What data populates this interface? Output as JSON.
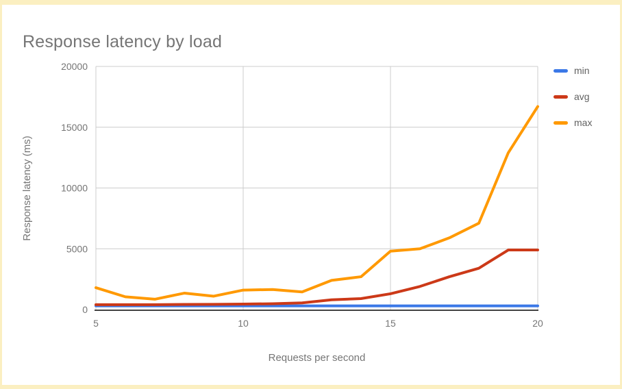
{
  "title": "Response latency by load",
  "frame": {
    "border_color": "#FBEFC1",
    "background": "#FFFFFF"
  },
  "legend": {
    "position": "right",
    "items": [
      {
        "label": "min",
        "color": "#3B78E7"
      },
      {
        "label": "avg",
        "color": "#CC3918"
      },
      {
        "label": "max",
        "color": "#FF9900"
      }
    ]
  },
  "chart_data": {
    "type": "line",
    "title": "Response latency by load",
    "xlabel": "Requests per second",
    "ylabel": "Response latency (ms)",
    "x": [
      5,
      6,
      7,
      8,
      9,
      10,
      11,
      12,
      13,
      14,
      15,
      16,
      17,
      18,
      19,
      20
    ],
    "series": [
      {
        "name": "min",
        "color": "#3B78E7",
        "values": [
          300,
          300,
          300,
          300,
          300,
          300,
          300,
          300,
          300,
          300,
          300,
          300,
          300,
          300,
          300,
          300
        ]
      },
      {
        "name": "avg",
        "color": "#CC3918",
        "values": [
          400,
          400,
          400,
          420,
          430,
          450,
          480,
          550,
          800,
          900,
          1300,
          1900,
          2700,
          3400,
          4900,
          4900
        ]
      },
      {
        "name": "max",
        "color": "#FF9900",
        "values": [
          1800,
          1050,
          850,
          1350,
          1100,
          1600,
          1650,
          1450,
          2400,
          2700,
          4800,
          5000,
          5900,
          7100,
          12900,
          16700
        ]
      }
    ],
    "xlim": [
      5,
      20
    ],
    "ylim": [
      0,
      20000
    ],
    "xticks": [
      5,
      10,
      15,
      20
    ],
    "yticks": [
      0,
      5000,
      10000,
      15000,
      20000
    ],
    "grid": true,
    "legend_position": "right",
    "colors": {
      "gridline": "#CCCCCC",
      "axis_line": "#424242",
      "tick_text": "#757575"
    }
  }
}
